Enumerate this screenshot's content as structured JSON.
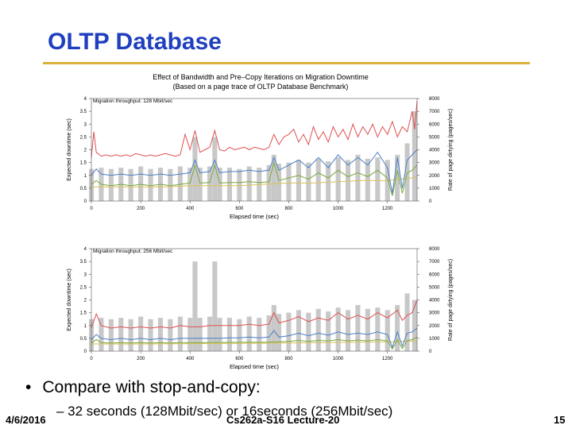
{
  "slide": {
    "title": "OLTP Database",
    "bullet": "Compare with stop-and-copy:",
    "sub_bullet": "– 32 seconds (128Mbit/sec) or 16seconds (256Mbit/sec)",
    "footer_left": "4/6/2016",
    "footer_center": "Cs262a-S16 Lecture-20",
    "footer_right": "15"
  },
  "figure": {
    "title_line1": "Effect of Bandwidth and Pre–Copy Iterations on Migration Downtime",
    "title_line2": "(Based on a page trace of OLTP Database Benchmark)"
  },
  "colors": {
    "slide_title": "#1f3fbf",
    "title_rule": "#d9b23a",
    "dirty_rate_bars": "#c8c8c8",
    "series_red": "#e05050",
    "series_blue": "#4a7fc8",
    "series_green": "#7aaa3a",
    "series_yellow": "#d9c25a"
  },
  "chart_data": [
    {
      "type": "line",
      "panel_label": "Migration throughput: 128 Mbit/sec",
      "xlabel": "Elapsed time (sec)",
      "ylabel": "Expected downtime (sec)",
      "ylabel_right": "Rate of page dirtying (pages/sec)",
      "xlim": [
        0,
        1320
      ],
      "ylim": [
        0,
        4
      ],
      "ylim_right": [
        0,
        8000
      ],
      "x_ticks": [
        "0",
        "200",
        "400",
        "600",
        "800",
        "1000",
        "1200"
      ],
      "y_ticks": [
        "0",
        "0.5",
        "1",
        "1.5",
        "2",
        "2.5",
        "3",
        "3.5",
        "4"
      ],
      "y_ticks_right": [
        "0",
        "1000",
        "2000",
        "3000",
        "4000",
        "5000",
        "6000",
        "7000",
        "8000"
      ],
      "grid": false,
      "bars": {
        "name": "Rate of page dirtying",
        "x": [
          0,
          40,
          80,
          120,
          160,
          200,
          240,
          280,
          320,
          360,
          400,
          420,
          440,
          480,
          500,
          520,
          560,
          600,
          640,
          680,
          720,
          740,
          760,
          800,
          840,
          880,
          920,
          960,
          1000,
          1040,
          1080,
          1120,
          1160,
          1200,
          1240,
          1280,
          1310
        ],
        "values": [
          2500,
          2600,
          2500,
          2600,
          2500,
          2700,
          2500,
          2600,
          2500,
          2700,
          2600,
          5000,
          2600,
          2700,
          5000,
          2600,
          2600,
          2500,
          2700,
          2600,
          2800,
          3600,
          2900,
          3000,
          3200,
          3000,
          3300,
          3100,
          3400,
          3200,
          3600,
          3300,
          3400,
          3200,
          3600,
          4500,
          7000
        ]
      },
      "series": [
        {
          "x": [
            0,
            10,
            20,
            40,
            60,
            80,
            100,
            120,
            140,
            160,
            180,
            200,
            220,
            240,
            260,
            280,
            300,
            320,
            340,
            360,
            380,
            400,
            420,
            440,
            460,
            480,
            500,
            520,
            540,
            560,
            580,
            600,
            620,
            640,
            660,
            680,
            700,
            720,
            740,
            760,
            780,
            800,
            820,
            840,
            860,
            880,
            900,
            920,
            940,
            960,
            980,
            1000,
            1020,
            1040,
            1060,
            1080,
            1100,
            1120,
            1140,
            1160,
            1180,
            1200,
            1220,
            1240,
            1260,
            1280,
            1300,
            1310,
            1320
          ],
          "values": [
            1.7,
            2.7,
            1.9,
            1.75,
            1.8,
            1.75,
            1.8,
            1.75,
            1.8,
            1.75,
            1.85,
            1.8,
            1.75,
            1.8,
            1.75,
            1.8,
            1.85,
            1.8,
            1.75,
            1.8,
            2.6,
            2.0,
            2.75,
            1.9,
            2.0,
            2.1,
            2.75,
            2.0,
            1.95,
            2.1,
            2.0,
            2.05,
            2.1,
            2.0,
            2.1,
            2.05,
            2.0,
            2.1,
            2.6,
            2.2,
            2.5,
            2.6,
            2.8,
            2.3,
            2.6,
            2.2,
            2.9,
            2.4,
            2.7,
            2.3,
            2.9,
            2.5,
            2.8,
            2.4,
            3.0,
            2.5,
            2.9,
            2.6,
            3.0,
            2.5,
            2.9,
            2.6,
            3.1,
            2.5,
            2.9,
            2.7,
            3.5,
            2.8,
            3.9
          ]
        },
        {
          "x": [
            0,
            20,
            40,
            80,
            120,
            160,
            200,
            240,
            280,
            320,
            360,
            400,
            420,
            440,
            480,
            500,
            520,
            560,
            600,
            640,
            680,
            720,
            740,
            760,
            800,
            840,
            880,
            920,
            960,
            1000,
            1040,
            1080,
            1120,
            1160,
            1200,
            1220,
            1240,
            1260,
            1280,
            1300,
            1320
          ],
          "values": [
            1.0,
            1.25,
            1.05,
            1.0,
            1.05,
            1.0,
            1.05,
            1.0,
            1.05,
            1.0,
            1.05,
            1.1,
            1.6,
            1.1,
            1.15,
            1.6,
            1.1,
            1.15,
            1.15,
            1.2,
            1.15,
            1.2,
            1.7,
            1.2,
            1.4,
            1.6,
            1.3,
            1.7,
            1.3,
            1.8,
            1.4,
            1.7,
            1.4,
            1.9,
            1.3,
            0.3,
            1.7,
            0.5,
            1.6,
            1.8,
            2.0
          ]
        },
        {
          "x": [
            0,
            20,
            40,
            80,
            120,
            160,
            200,
            240,
            280,
            320,
            360,
            400,
            420,
            440,
            480,
            500,
            520,
            560,
            600,
            640,
            680,
            720,
            740,
            760,
            800,
            840,
            880,
            920,
            960,
            1000,
            1040,
            1080,
            1120,
            1160,
            1200,
            1220,
            1240,
            1260,
            1280,
            1300,
            1320
          ],
          "values": [
            0.65,
            0.8,
            0.65,
            0.6,
            0.65,
            0.6,
            0.65,
            0.6,
            0.65,
            0.6,
            0.65,
            0.7,
            1.4,
            0.7,
            0.72,
            1.4,
            0.7,
            0.72,
            0.72,
            0.75,
            0.72,
            0.75,
            1.5,
            0.8,
            0.9,
            1.0,
            0.85,
            1.1,
            0.9,
            1.2,
            0.95,
            1.1,
            0.95,
            1.2,
            0.9,
            0.2,
            1.2,
            0.3,
            1.1,
            1.2,
            1.4
          ]
        },
        {
          "x": [
            0,
            100,
            200,
            300,
            400,
            500,
            600,
            700,
            800,
            900,
            1000,
            1100,
            1200,
            1300,
            1320
          ],
          "values": [
            0.55,
            0.55,
            0.55,
            0.55,
            0.6,
            0.6,
            0.6,
            0.65,
            0.7,
            0.7,
            0.75,
            0.8,
            0.8,
            0.9,
            0.95
          ]
        }
      ]
    },
    {
      "type": "line",
      "panel_label": "Migration throughput: 256 Mbit/sec",
      "xlabel": "Elapsed time (sec)",
      "ylabel": "Expected downtime (sec)",
      "ylabel_right": "Rate of page dirtying (pages/sec)",
      "xlim": [
        0,
        1320
      ],
      "ylim": [
        0,
        4
      ],
      "ylim_right": [
        0,
        8000
      ],
      "x_ticks": [
        "0",
        "200",
        "400",
        "600",
        "800",
        "1000",
        "1200"
      ],
      "y_ticks": [
        "0",
        "0.5",
        "1",
        "1.5",
        "2",
        "2.5",
        "3",
        "3.5",
        "4"
      ],
      "y_ticks_right": [
        "0",
        "1000",
        "2000",
        "3000",
        "4000",
        "5000",
        "6000",
        "7000",
        "8000"
      ],
      "grid": false,
      "bars": {
        "name": "Rate of page dirtying",
        "x": [
          0,
          40,
          80,
          120,
          160,
          200,
          240,
          280,
          320,
          360,
          400,
          420,
          440,
          480,
          500,
          520,
          560,
          600,
          640,
          680,
          720,
          740,
          760,
          800,
          840,
          880,
          920,
          960,
          1000,
          1040,
          1080,
          1120,
          1160,
          1200,
          1240,
          1280,
          1310
        ],
        "values": [
          2500,
          2600,
          2500,
          2600,
          2500,
          2700,
          2500,
          2600,
          2500,
          2700,
          2600,
          7000,
          2600,
          2700,
          7000,
          2600,
          2600,
          2500,
          2700,
          2600,
          2800,
          3600,
          2900,
          3000,
          3200,
          3000,
          3300,
          3100,
          3400,
          3200,
          3600,
          3300,
          3400,
          3200,
          3600,
          4500,
          4000
        ]
      },
      "series": [
        {
          "x": [
            0,
            20,
            40,
            80,
            120,
            160,
            200,
            240,
            280,
            320,
            360,
            400,
            440,
            480,
            520,
            560,
            600,
            640,
            680,
            720,
            740,
            760,
            800,
            840,
            880,
            920,
            960,
            1000,
            1040,
            1080,
            1120,
            1160,
            1200,
            1240,
            1260,
            1280,
            1300,
            1320
          ],
          "values": [
            0.9,
            1.45,
            1.0,
            0.9,
            0.95,
            0.9,
            0.95,
            0.9,
            0.95,
            0.9,
            1.0,
            0.95,
            0.95,
            1.0,
            1.0,
            1.0,
            1.0,
            1.05,
            1.0,
            1.05,
            1.5,
            1.1,
            1.2,
            1.35,
            1.15,
            1.3,
            1.2,
            1.5,
            1.25,
            1.4,
            1.25,
            1.5,
            1.3,
            1.6,
            1.2,
            1.4,
            1.5,
            2.0
          ]
        },
        {
          "x": [
            0,
            20,
            40,
            80,
            120,
            160,
            200,
            240,
            280,
            320,
            360,
            400,
            440,
            480,
            520,
            560,
            600,
            640,
            680,
            720,
            740,
            760,
            800,
            840,
            880,
            920,
            960,
            1000,
            1040,
            1080,
            1120,
            1160,
            1200,
            1220,
            1240,
            1260,
            1280,
            1300,
            1320
          ],
          "values": [
            0.45,
            0.65,
            0.5,
            0.45,
            0.5,
            0.45,
            0.5,
            0.45,
            0.5,
            0.45,
            0.5,
            0.5,
            0.5,
            0.5,
            0.5,
            0.52,
            0.52,
            0.55,
            0.52,
            0.55,
            0.8,
            0.55,
            0.6,
            0.7,
            0.6,
            0.7,
            0.62,
            0.75,
            0.65,
            0.7,
            0.65,
            0.75,
            0.65,
            0.15,
            0.75,
            0.2,
            0.7,
            0.75,
            0.9
          ]
        },
        {
          "x": [
            0,
            20,
            40,
            80,
            120,
            160,
            200,
            240,
            280,
            320,
            360,
            400,
            440,
            480,
            520,
            560,
            600,
            640,
            680,
            720,
            760,
            800,
            840,
            880,
            920,
            960,
            1000,
            1040,
            1080,
            1120,
            1160,
            1200,
            1220,
            1240,
            1260,
            1280,
            1300,
            1320
          ],
          "values": [
            0.32,
            0.45,
            0.33,
            0.32,
            0.33,
            0.32,
            0.33,
            0.32,
            0.33,
            0.32,
            0.33,
            0.33,
            0.33,
            0.34,
            0.34,
            0.34,
            0.34,
            0.35,
            0.34,
            0.35,
            0.36,
            0.38,
            0.42,
            0.38,
            0.42,
            0.4,
            0.45,
            0.4,
            0.43,
            0.4,
            0.45,
            0.4,
            0.08,
            0.45,
            0.1,
            0.42,
            0.45,
            0.55
          ]
        },
        {
          "x": [
            0,
            200,
            400,
            600,
            800,
            1000,
            1200,
            1320
          ],
          "values": [
            0.28,
            0.28,
            0.29,
            0.3,
            0.32,
            0.34,
            0.36,
            0.4
          ]
        }
      ]
    }
  ]
}
